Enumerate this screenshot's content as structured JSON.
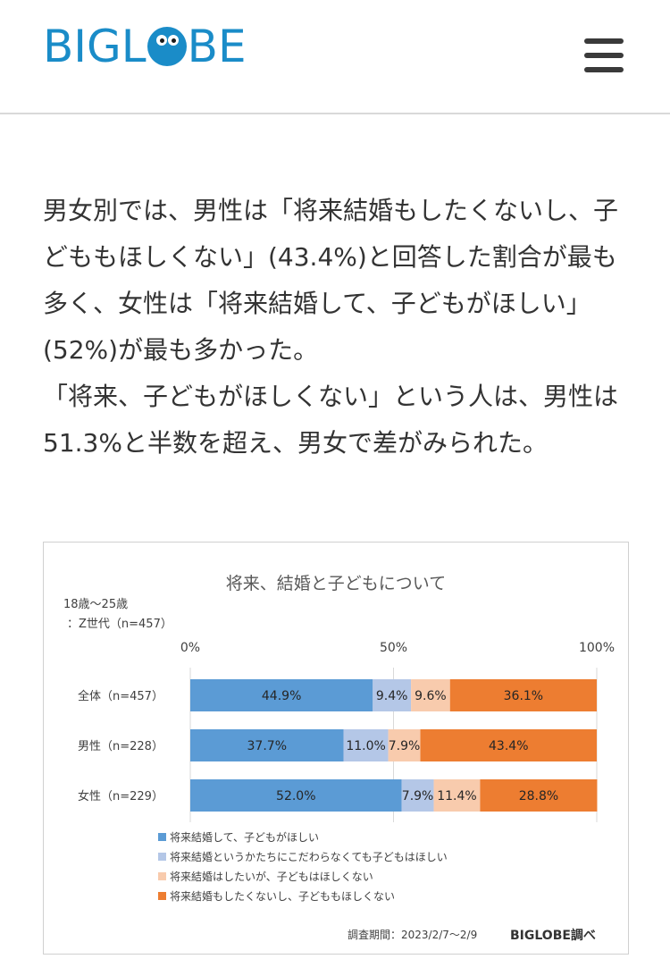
{
  "header": {
    "logo_text_left": "BIGL",
    "logo_text_right": "BE",
    "logo_alt": "BIGLOBE",
    "menu_icon": "hamburger-menu-icon"
  },
  "article": {
    "paragraphs": [
      "男女別では、男性は「将来結婚もしたくないし、子どももほしくない」(43.4%)と回答した割合が最も多く、女性は「将来結婚して、子どもがほしい」(52%)が最も多かった。",
      "「将来、子どもがほしくない」という人は、男性は51.3%と半数を超え、男女で差がみられた。"
    ],
    "lines": [
      "男女別では、男性は「将来結婚もしたくないし、子",
      "どももほしくない」(43.4%)と回答した割合が最も",
      "多く、女性は「将来結婚して、子どもがほしい」",
      "(52%)が最も多かった。",
      "「将来、子どもがほしくない」という人は、男性は",
      "51.3%と半数を超え、男女で差がみられた。"
    ]
  },
  "chart_data": {
    "type": "bar",
    "orientation": "horizontal-stacked-100",
    "title": "将来、結婚と子どもについて",
    "subtitle_line1": "18歳～25歳",
    "subtitle_line2": "：Z世代（n=457）",
    "axis_ticks": [
      "0%",
      "50%",
      "100%"
    ],
    "xlim": [
      0,
      100
    ],
    "categories": [
      "全体（n=457）",
      "男性（n=228）",
      "女性（n=229）"
    ],
    "series": [
      {
        "name": "将来結婚して、子どもがほしい",
        "color": "#5b9bd5",
        "values": [
          44.9,
          37.7,
          52.0
        ],
        "labels": [
          "44.9%",
          "37.7%",
          "52.0%"
        ]
      },
      {
        "name": "将来結婚というかたちにこだわらなくても子どもはほしい",
        "color": "#b4c7e7",
        "values": [
          9.4,
          11.0,
          7.9
        ],
        "labels": [
          "9.4%",
          "11.0%",
          "7.9%"
        ]
      },
      {
        "name": "将来結婚はしたいが、子どもはほしくない",
        "color": "#f8cbad",
        "values": [
          9.6,
          7.9,
          11.4
        ],
        "labels": [
          "9.6%",
          "7.9%",
          "11.4%"
        ]
      },
      {
        "name": "将来結婚もしたくないし、子どももほしくない",
        "color": "#ed7d31",
        "values": [
          36.1,
          43.4,
          28.8
        ],
        "labels": [
          "36.1%",
          "43.4%",
          "28.8%"
        ]
      }
    ],
    "legend_position": "bottom-left",
    "footnote": "調査期間：2023/2/7～2/9",
    "source": "BIGLOBE調べ"
  }
}
